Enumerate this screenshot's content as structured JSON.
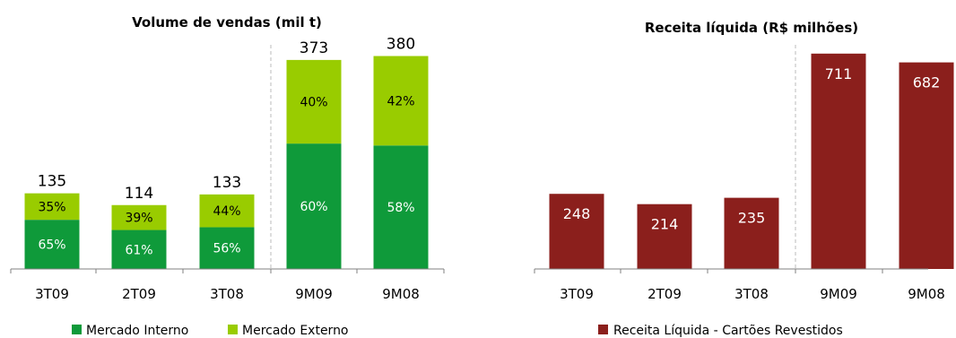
{
  "colors": {
    "mercado_interno": "#0f9a3a",
    "mercado_externo": "#99cc00",
    "receita": "#8b1f1c",
    "divider": "#bbbbbb",
    "axis": "#808080"
  },
  "chart_data": [
    {
      "type": "bar",
      "stacked": true,
      "title": "Volume de vendas (mil t)",
      "categories": [
        "3T09",
        "2T09",
        "3T08",
        "9M09",
        "9M08"
      ],
      "totals": [
        135,
        114,
        133,
        373,
        380
      ],
      "total_labels": [
        "135",
        "114",
        "133",
        "373",
        "380"
      ],
      "ylim": [
        0,
        400
      ],
      "series": [
        {
          "name": "Mercado Interno",
          "percent": [
            65,
            61,
            56,
            60,
            58
          ],
          "labels": [
            "65%",
            "61%",
            "56%",
            "60%",
            "58%"
          ]
        },
        {
          "name": "Mercado Externo",
          "percent": [
            35,
            39,
            44,
            40,
            42
          ],
          "labels": [
            "35%",
            "39%",
            "44%",
            "40%",
            "42%"
          ]
        }
      ],
      "legend": "bottom",
      "grid": false
    },
    {
      "type": "bar",
      "title": "Receita líquida (R$ milhões)",
      "categories": [
        "3T09",
        "2T09",
        "3T08",
        "9M09",
        "9M08"
      ],
      "series": [
        {
          "name": "Receita Líquida - Cartões Revestidos",
          "values": [
            248,
            214,
            235,
            711,
            682
          ],
          "labels": [
            "248",
            "214",
            "235",
            "711",
            "682"
          ]
        }
      ],
      "ylim": [
        0,
        740
      ],
      "legend": "bottom",
      "grid": false
    }
  ]
}
